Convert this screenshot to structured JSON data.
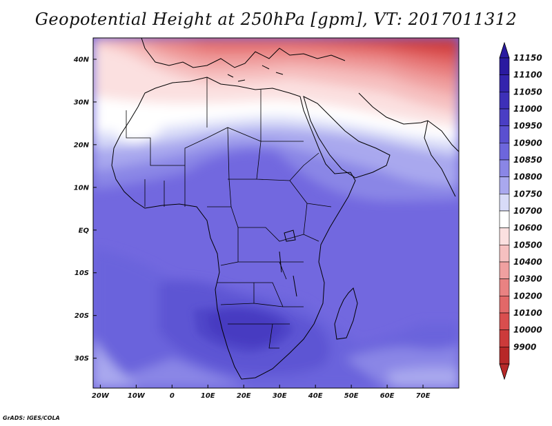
{
  "title": "Geopotential Height at 250hPa [gpm], VT: 2017011312",
  "credit": "GrADS: IGES/COLA",
  "map": {
    "lon_range": [
      -22,
      80
    ],
    "lat_range": [
      -37,
      45
    ],
    "lat_ticks": [
      {
        "value": 40,
        "label": "40N"
      },
      {
        "value": 30,
        "label": "30N"
      },
      {
        "value": 20,
        "label": "20N"
      },
      {
        "value": 10,
        "label": "10N"
      },
      {
        "value": 0,
        "label": "EQ"
      },
      {
        "value": -10,
        "label": "10S"
      },
      {
        "value": -20,
        "label": "20S"
      },
      {
        "value": -30,
        "label": "30S"
      }
    ],
    "lon_ticks": [
      {
        "value": -20,
        "label": "20W"
      },
      {
        "value": -10,
        "label": "10W"
      },
      {
        "value": 0,
        "label": "0"
      },
      {
        "value": 10,
        "label": "10E"
      },
      {
        "value": 20,
        "label": "20E"
      },
      {
        "value": 30,
        "label": "30E"
      },
      {
        "value": 40,
        "label": "40E"
      },
      {
        "value": 50,
        "label": "50E"
      },
      {
        "value": 60,
        "label": "60E"
      },
      {
        "value": 70,
        "label": "70E"
      }
    ]
  },
  "colorbar": {
    "levels": [
      {
        "label": "11150",
        "color": "#2a1aa0"
      },
      {
        "label": "11100",
        "color": "#3324ad"
      },
      {
        "label": "11050",
        "color": "#3d30b8"
      },
      {
        "label": "11000",
        "color": "#4a3ec4"
      },
      {
        "label": "10950",
        "color": "#5a50d0"
      },
      {
        "label": "10900",
        "color": "#6d66dc"
      },
      {
        "label": "10850",
        "color": "#8a86e6"
      },
      {
        "label": "10800",
        "color": "#a9a8ee"
      },
      {
        "label": "10750",
        "color": "#d8dbf8"
      },
      {
        "label": "10700",
        "color": "#ffffff"
      },
      {
        "label": "10600",
        "color": "#fbe0e0"
      },
      {
        "label": "10500",
        "color": "#f6c0c0"
      },
      {
        "label": "10400",
        "color": "#f0a0a0"
      },
      {
        "label": "10300",
        "color": "#e98282"
      },
      {
        "label": "10200",
        "color": "#e26868"
      },
      {
        "label": "10100",
        "color": "#d94e4e"
      },
      {
        "label": "10000",
        "color": "#cc3a3a"
      },
      {
        "label": "9900",
        "color": "#b72828"
      }
    ],
    "top_color": "#2a1aa0",
    "bottom_color": "#b72828"
  }
}
